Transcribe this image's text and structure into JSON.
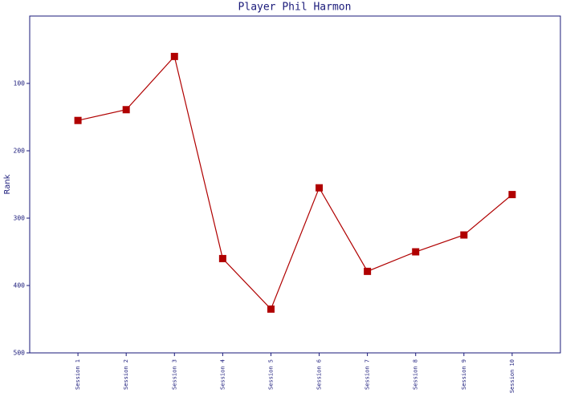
{
  "chart_data": {
    "type": "line",
    "title": "Player Phil Harmon",
    "y_label": "Rank",
    "categories": [
      "Session 1",
      "Session 2",
      "Session 3",
      "Session 4",
      "Session 5",
      "Session 6",
      "Session 7",
      "Session 8",
      "Session 9",
      "Session 10"
    ],
    "series": [
      {
        "name": "Rank",
        "color": "#b00000",
        "values": [
          155,
          139,
          60,
          360,
          435,
          255,
          379,
          350,
          325,
          265
        ]
      }
    ],
    "ylim": [
      0,
      500
    ],
    "yticks": [
      100,
      200,
      300,
      400,
      500
    ],
    "y_inverted": true
  }
}
